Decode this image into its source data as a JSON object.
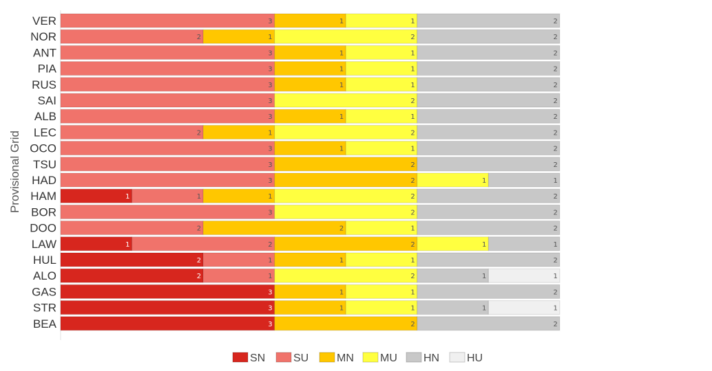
{
  "chart_data": {
    "type": "bar",
    "orientation": "horizontal",
    "stacked": true,
    "ylabel": "Provisional Grid",
    "xlabel": "",
    "title": "",
    "xlim": [
      0,
      9
    ],
    "legend_position": "bottom",
    "categories": [
      "VER",
      "NOR",
      "ANT",
      "PIA",
      "RUS",
      "SAI",
      "ALB",
      "LEC",
      "OCO",
      "TSU",
      "HAD",
      "HAM",
      "BOR",
      "DOO",
      "LAW",
      "HUL",
      "ALO",
      "GAS",
      "STR",
      "BEA"
    ],
    "series": [
      {
        "name": "SN",
        "color": "#d7261e",
        "values": [
          0,
          0,
          0,
          0,
          0,
          0,
          0,
          0,
          0,
          0,
          0,
          1,
          0,
          0,
          1,
          2,
          2,
          3,
          3,
          3
        ]
      },
      {
        "name": "SU",
        "color": "#f0736b",
        "values": [
          3,
          2,
          3,
          3,
          3,
          3,
          3,
          2,
          3,
          3,
          3,
          1,
          3,
          2,
          2,
          1,
          1,
          0,
          0,
          0
        ]
      },
      {
        "name": "MN",
        "color": "#ffc700",
        "values": [
          1,
          1,
          1,
          1,
          1,
          0,
          1,
          1,
          1,
          2,
          2,
          1,
          0,
          2,
          2,
          1,
          0,
          1,
          1,
          2
        ]
      },
      {
        "name": "MU",
        "color": "#ffff40",
        "values": [
          1,
          2,
          1,
          1,
          1,
          2,
          1,
          2,
          1,
          0,
          1,
          2,
          2,
          1,
          1,
          1,
          2,
          1,
          1,
          0
        ]
      },
      {
        "name": "HN",
        "color": "#c8c8c8",
        "values": [
          2,
          2,
          2,
          2,
          2,
          2,
          2,
          2,
          2,
          2,
          1,
          2,
          2,
          2,
          1,
          2,
          1,
          2,
          1,
          2
        ]
      },
      {
        "name": "HU",
        "color": "#f0f0f0",
        "values": [
          0,
          0,
          0,
          0,
          0,
          0,
          0,
          0,
          0,
          0,
          0,
          0,
          0,
          0,
          0,
          0,
          1,
          0,
          1,
          0
        ]
      }
    ]
  }
}
